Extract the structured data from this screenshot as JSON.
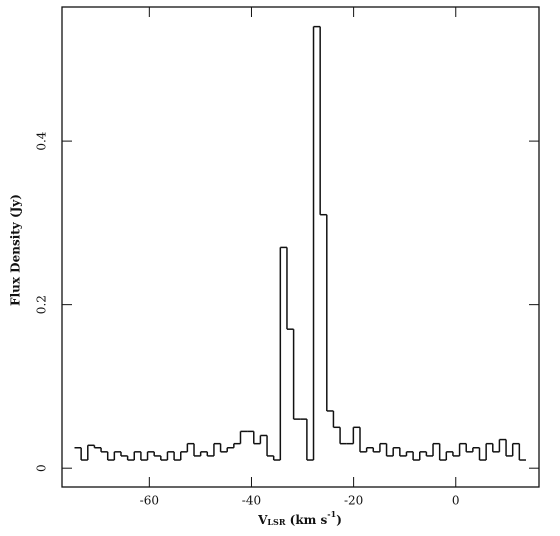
{
  "chart_data": {
    "type": "step",
    "y_label": "Flux Density  (Jy)",
    "x_label": {
      "main": "V",
      "sub": "LSR",
      "rest": " (km s",
      "sup": "-1",
      "end": ")"
    },
    "x": [
      -74.0,
      -72.7,
      -71.4,
      -70.1,
      -68.8,
      -67.5,
      -66.2,
      -64.9,
      -63.6,
      -62.3,
      -61.0,
      -59.7,
      -58.4,
      -57.1,
      -55.8,
      -54.5,
      -53.2,
      -51.9,
      -50.6,
      -49.3,
      -48.0,
      -46.7,
      -45.4,
      -44.1,
      -42.8,
      -41.5,
      -40.2,
      -38.9,
      -37.6,
      -36.3,
      -35.0,
      -33.7,
      -32.4,
      -31.1,
      -29.8,
      -28.5,
      -27.2,
      -25.9,
      -24.6,
      -23.3,
      -22.0,
      -20.7,
      -19.4,
      -18.1,
      -16.8,
      -15.5,
      -14.2,
      -12.9,
      -11.6,
      -10.3,
      -9.0,
      -7.7,
      -6.4,
      -5.1,
      -3.8,
      -2.5,
      -1.2,
      0.1,
      1.4,
      2.7,
      4.0,
      5.3,
      6.6,
      7.9,
      9.2,
      10.5,
      11.8,
      13.1
    ],
    "values": [
      0.025,
      0.01,
      0.028,
      0.025,
      0.02,
      0.01,
      0.02,
      0.015,
      0.01,
      0.02,
      0.01,
      0.02,
      0.015,
      0.01,
      0.02,
      0.01,
      0.02,
      0.03,
      0.015,
      0.02,
      0.015,
      0.03,
      0.02,
      0.025,
      0.03,
      0.045,
      0.045,
      0.03,
      0.04,
      0.015,
      0.01,
      0.27,
      0.17,
      0.06,
      0.06,
      0.01,
      0.54,
      0.31,
      0.07,
      0.05,
      0.03,
      0.03,
      0.05,
      0.02,
      0.025,
      0.02,
      0.03,
      0.015,
      0.025,
      0.015,
      0.02,
      0.01,
      0.02,
      0.015,
      0.03,
      0.01,
      0.02,
      0.015,
      0.03,
      0.02,
      0.025,
      0.01,
      0.03,
      0.02,
      0.035,
      0.015,
      0.03,
      0.01
    ],
    "color": "#111111",
    "xlim": [
      -77.1,
      16.3
    ],
    "xticks": [
      -60,
      -40,
      -20,
      0
    ],
    "ylim": [
      -0.023,
      0.564
    ],
    "yticks": [
      0,
      0.2,
      0.4
    ]
  }
}
